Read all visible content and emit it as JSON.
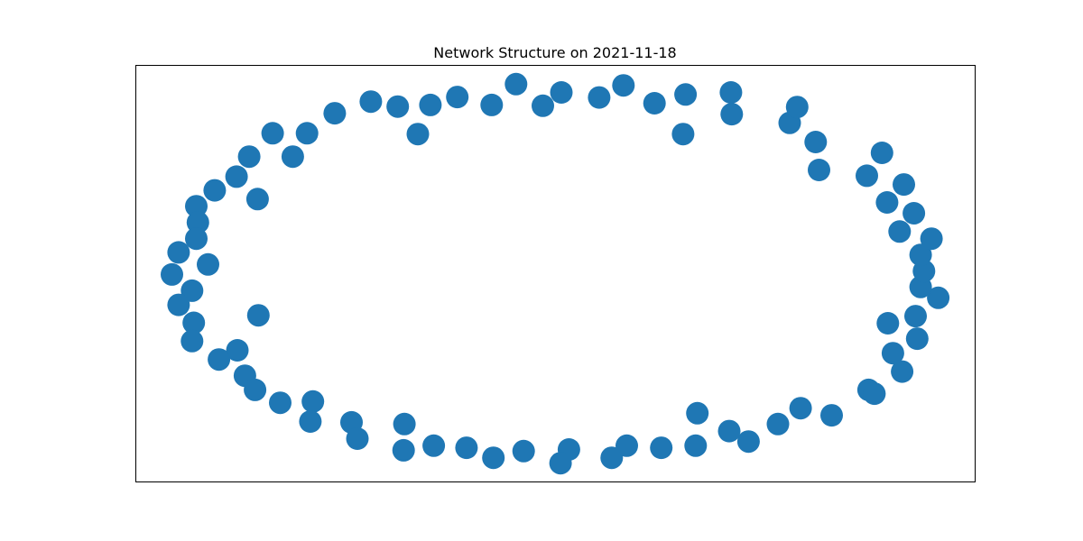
{
  "chart_data": {
    "type": "scatter",
    "title": "Network Structure on 2021-11-18",
    "xlabel": "",
    "ylabel": "",
    "xlim": [
      0,
      1
    ],
    "ylim": [
      0,
      1
    ],
    "axis_ticks": false,
    "grid": false,
    "legend": "none",
    "node_color": "#1f77b4",
    "series": [
      {
        "points": [
          [
            0.453,
            0.955
          ],
          [
            0.507,
            0.935
          ],
          [
            0.485,
            0.903
          ],
          [
            0.424,
            0.905
          ],
          [
            0.383,
            0.924
          ],
          [
            0.351,
            0.905
          ],
          [
            0.312,
            0.901
          ],
          [
            0.28,
            0.913
          ],
          [
            0.237,
            0.885
          ],
          [
            0.204,
            0.837
          ],
          [
            0.163,
            0.837
          ],
          [
            0.187,
            0.781
          ],
          [
            0.135,
            0.781
          ],
          [
            0.12,
            0.733
          ],
          [
            0.094,
            0.7
          ],
          [
            0.145,
            0.679
          ],
          [
            0.072,
            0.662
          ],
          [
            0.074,
            0.623
          ],
          [
            0.072,
            0.584
          ],
          [
            0.051,
            0.551
          ],
          [
            0.043,
            0.498
          ],
          [
            0.086,
            0.522
          ],
          [
            0.067,
            0.459
          ],
          [
            0.051,
            0.425
          ],
          [
            0.069,
            0.382
          ],
          [
            0.146,
            0.4
          ],
          [
            0.067,
            0.338
          ],
          [
            0.121,
            0.316
          ],
          [
            0.099,
            0.294
          ],
          [
            0.13,
            0.255
          ],
          [
            0.142,
            0.221
          ],
          [
            0.172,
            0.19
          ],
          [
            0.211,
            0.193
          ],
          [
            0.208,
            0.145
          ],
          [
            0.257,
            0.143
          ],
          [
            0.264,
            0.104
          ],
          [
            0.32,
            0.139
          ],
          [
            0.319,
            0.076
          ],
          [
            0.355,
            0.087
          ],
          [
            0.394,
            0.082
          ],
          [
            0.426,
            0.058
          ],
          [
            0.462,
            0.074
          ],
          [
            0.516,
            0.078
          ],
          [
            0.506,
            0.045
          ],
          [
            0.567,
            0.058
          ],
          [
            0.585,
            0.087
          ],
          [
            0.626,
            0.082
          ],
          [
            0.667,
            0.087
          ],
          [
            0.669,
            0.165
          ],
          [
            0.707,
            0.122
          ],
          [
            0.73,
            0.097
          ],
          [
            0.765,
            0.139
          ],
          [
            0.792,
            0.177
          ],
          [
            0.829,
            0.16
          ],
          [
            0.873,
            0.221
          ],
          [
            0.913,
            0.265
          ],
          [
            0.88,
            0.212
          ],
          [
            0.902,
            0.309
          ],
          [
            0.896,
            0.381
          ],
          [
            0.931,
            0.344
          ],
          [
            0.929,
            0.398
          ],
          [
            0.956,
            0.442
          ],
          [
            0.935,
            0.468
          ],
          [
            0.939,
            0.506
          ],
          [
            0.935,
            0.545
          ],
          [
            0.948,
            0.584
          ],
          [
            0.91,
            0.601
          ],
          [
            0.927,
            0.645
          ],
          [
            0.895,
            0.671
          ],
          [
            0.915,
            0.714
          ],
          [
            0.871,
            0.735
          ],
          [
            0.889,
            0.79
          ],
          [
            0.81,
            0.816
          ],
          [
            0.814,
            0.749
          ],
          [
            0.779,
            0.862
          ],
          [
            0.788,
            0.9
          ],
          [
            0.71,
            0.883
          ],
          [
            0.709,
            0.935
          ],
          [
            0.652,
            0.835
          ],
          [
            0.655,
            0.93
          ],
          [
            0.618,
            0.909
          ],
          [
            0.581,
            0.952
          ],
          [
            0.552,
            0.923
          ],
          [
            0.336,
            0.835
          ]
        ]
      }
    ]
  }
}
